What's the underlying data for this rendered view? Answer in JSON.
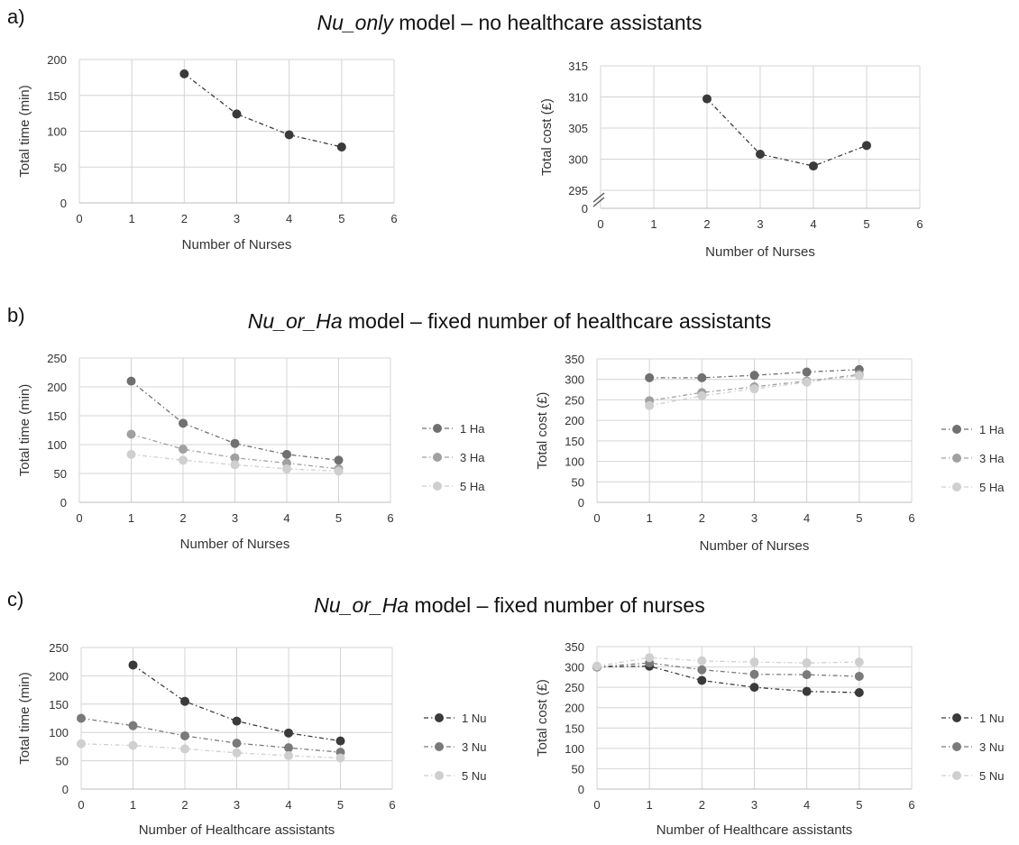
{
  "panels": [
    {
      "letter": "a)",
      "title_italic": "Nu_only",
      "title_rest": " model – no healthcare assistants"
    },
    {
      "letter": "b)",
      "title_italic": "Nu_or_Ha",
      "title_rest": " model – fixed number of healthcare assistants"
    },
    {
      "letter": "c)",
      "title_italic": "Nu_or_Ha",
      "title_rest": " model – fixed number of nurses"
    }
  ],
  "chart_data": [
    {
      "id": "a-time",
      "type": "line",
      "xlabel": "Number of Nurses",
      "ylabel": "Total time (min)",
      "xlim": [
        0,
        6
      ],
      "ylim": [
        0,
        200
      ],
      "xticks": [
        0,
        1,
        2,
        3,
        4,
        5,
        6
      ],
      "yticks": [
        0,
        50,
        100,
        150,
        200
      ],
      "grid": true,
      "legend": "none",
      "series": [
        {
          "color": "#3a3a3a",
          "x": [
            2,
            3,
            4,
            5
          ],
          "y": [
            180,
            124,
            95,
            78
          ]
        }
      ]
    },
    {
      "id": "a-cost",
      "type": "line",
      "xlabel": "Number of Nurses",
      "ylabel": "Total cost (£)",
      "xlim": [
        0,
        6
      ],
      "ylim": [
        295,
        315
      ],
      "axis_break": true,
      "break_floor_label": "0",
      "xticks": [
        0,
        1,
        2,
        3,
        4,
        5,
        6
      ],
      "yticks": [
        295,
        300,
        305,
        310,
        315
      ],
      "grid": true,
      "legend": "none",
      "series": [
        {
          "color": "#3a3a3a",
          "x": [
            2,
            3,
            4,
            5
          ],
          "y": [
            309.7,
            300.8,
            298.9,
            302.2
          ]
        }
      ]
    },
    {
      "id": "b-time",
      "type": "line",
      "xlabel": "Number of Nurses",
      "ylabel": "Total time (min)",
      "xlim": [
        0,
        6
      ],
      "ylim": [
        0,
        250
      ],
      "xticks": [
        0,
        1,
        2,
        3,
        4,
        5,
        6
      ],
      "yticks": [
        0,
        50,
        100,
        150,
        200,
        250
      ],
      "grid": true,
      "legend": "right",
      "series": [
        {
          "name": "1 Ha",
          "color": "#707070",
          "x": [
            1,
            2,
            3,
            4,
            5
          ],
          "y": [
            210,
            137,
            102,
            83,
            73
          ]
        },
        {
          "name": "3 Ha",
          "color": "#a0a0a0",
          "x": [
            1,
            2,
            3,
            4,
            5
          ],
          "y": [
            118,
            92,
            77,
            68,
            58
          ]
        },
        {
          "name": "5 Ha",
          "color": "#cfcfcf",
          "x": [
            1,
            2,
            3,
            4,
            5
          ],
          "y": [
            83,
            73,
            65,
            58,
            54
          ]
        }
      ]
    },
    {
      "id": "b-cost",
      "type": "line",
      "xlabel": "Number of Nurses",
      "ylabel": "Total cost (£)",
      "xlim": [
        0,
        6
      ],
      "ylim": [
        0,
        350
      ],
      "xticks": [
        0,
        1,
        2,
        3,
        4,
        5,
        6
      ],
      "yticks": [
        0,
        50,
        100,
        150,
        200,
        250,
        300,
        350
      ],
      "grid": true,
      "legend": "right",
      "series": [
        {
          "name": "1 Ha",
          "color": "#707070",
          "x": [
            1,
            2,
            3,
            4,
            5
          ],
          "y": [
            304,
            304,
            310,
            318,
            324
          ]
        },
        {
          "name": "3 Ha",
          "color": "#a0a0a0",
          "x": [
            1,
            2,
            3,
            4,
            5
          ],
          "y": [
            248,
            268,
            282,
            296,
            312
          ]
        },
        {
          "name": "5 Ha",
          "color": "#cfcfcf",
          "x": [
            1,
            2,
            3,
            4,
            5
          ],
          "y": [
            236,
            260,
            277,
            293,
            309
          ]
        }
      ]
    },
    {
      "id": "c-time",
      "type": "line",
      "xlabel": "Number of Healthcare assistants",
      "ylabel": "Total time (min)",
      "xlim": [
        0,
        6
      ],
      "ylim": [
        0,
        250
      ],
      "xticks": [
        0,
        1,
        2,
        3,
        4,
        5,
        6
      ],
      "yticks": [
        0,
        50,
        100,
        150,
        200,
        250
      ],
      "grid": true,
      "legend": "right",
      "series": [
        {
          "name": "1 Nu",
          "color": "#3a3a3a",
          "x": [
            1,
            2,
            3,
            4,
            5
          ],
          "y": [
            219,
            155,
            120,
            99,
            85
          ]
        },
        {
          "name": "3 Nu",
          "color": "#7a7a7a",
          "x": [
            0,
            1,
            2,
            3,
            4,
            5
          ],
          "y": [
            125,
            112,
            94,
            81,
            73,
            65
          ]
        },
        {
          "name": "5 Nu",
          "color": "#cfcfcf",
          "x": [
            0,
            1,
            2,
            3,
            4,
            5
          ],
          "y": [
            80,
            77,
            71,
            64,
            59,
            55
          ]
        }
      ]
    },
    {
      "id": "c-cost",
      "type": "line",
      "xlabel": "Number of Healthcare assistants",
      "ylabel": "Total cost (£)",
      "xlim": [
        0,
        6
      ],
      "ylim": [
        0,
        350
      ],
      "xticks": [
        0,
        1,
        2,
        3,
        4,
        5,
        6
      ],
      "yticks": [
        0,
        50,
        100,
        150,
        200,
        250,
        300,
        350
      ],
      "grid": true,
      "legend": "right",
      "series": [
        {
          "name": "1 Nu",
          "color": "#3a3a3a",
          "x": [
            0,
            1,
            2,
            3,
            4,
            5
          ],
          "y": [
            300,
            302,
            267,
            250,
            240,
            237
          ]
        },
        {
          "name": "3 Nu",
          "color": "#7a7a7a",
          "x": [
            0,
            1,
            2,
            3,
            4,
            5
          ],
          "y": [
            300,
            310,
            293,
            282,
            281,
            277
          ]
        },
        {
          "name": "5 Nu",
          "color": "#cfcfcf",
          "x": [
            0,
            1,
            2,
            3,
            4,
            5
          ],
          "y": [
            302,
            323,
            315,
            312,
            310,
            312
          ]
        }
      ]
    }
  ]
}
